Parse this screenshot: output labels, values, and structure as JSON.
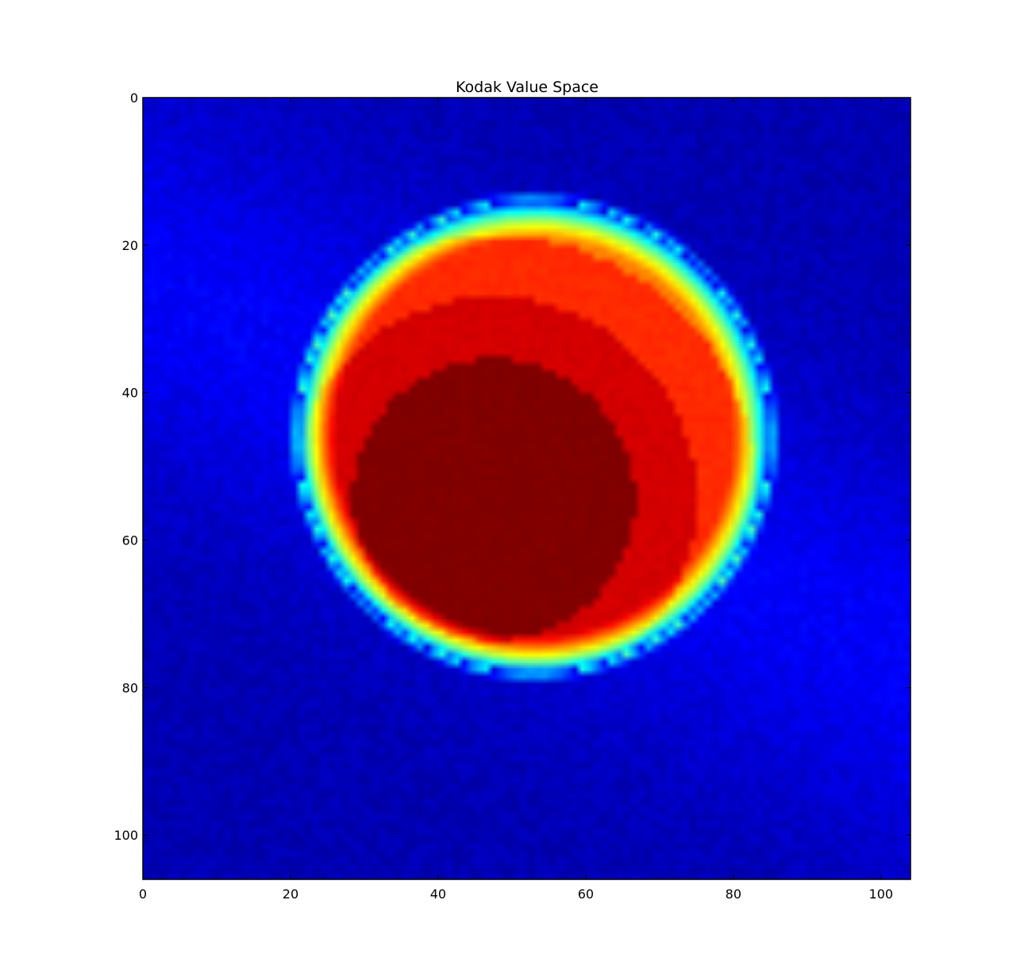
{
  "chart_data": {
    "type": "heatmap",
    "title": "Kodak Value Space",
    "xlabel": "",
    "ylabel": "",
    "colormap": "jet",
    "image_shape": {
      "rows": 106,
      "cols": 104
    },
    "xlim": [
      0,
      104
    ],
    "ylim": [
      106,
      0
    ],
    "x_ticks": [
      0,
      20,
      40,
      60,
      80,
      100
    ],
    "y_ticks": [
      0,
      20,
      40,
      60,
      80,
      100
    ],
    "x_tick_labels": [
      "0",
      "20",
      "40",
      "60",
      "80",
      "100"
    ],
    "y_tick_labels": [
      "0",
      "20",
      "40",
      "60",
      "80",
      "100"
    ],
    "grid": false,
    "blob": {
      "center_x": 52.5,
      "center_y": 45.5,
      "radius": 32,
      "core_center_x": 47,
      "core_center_y": 54,
      "core_radius": 15,
      "description_values": {
        "background_level": 0.05,
        "edge_level": 0.5,
        "core_level": 1.0
      }
    }
  }
}
